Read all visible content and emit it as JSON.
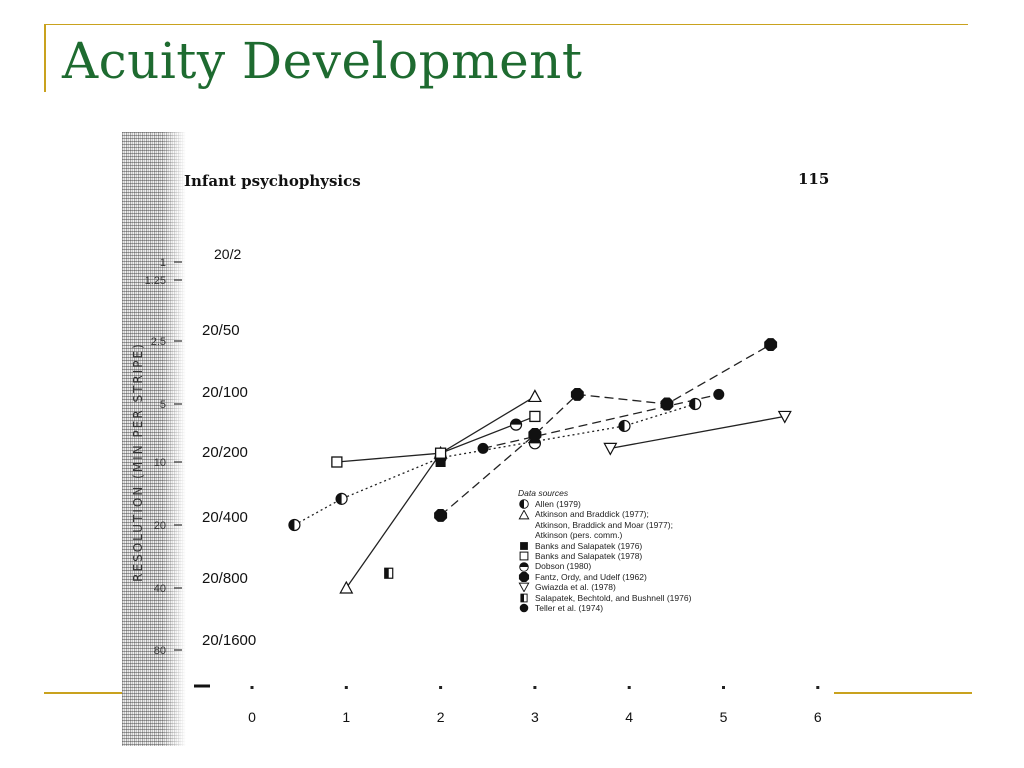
{
  "slide": {
    "title": "Acuity Development"
  },
  "figure": {
    "header_left": "Infant psychophysics",
    "header_right": "115",
    "vertical_label": "RESOLUTION (MIN PER STRIPE)"
  },
  "legend": {
    "title": "Data sources",
    "items": [
      {
        "label": "Allen (1979)",
        "symbol": "half-circle"
      },
      {
        "label": "Atkinson and Braddick (1977);",
        "symbol": "triangle-up"
      },
      {
        "label": "Atkinson, Braddick and Moar (1977);",
        "symbol": "none"
      },
      {
        "label": "Atkinson (pers. comm.)",
        "symbol": "none"
      },
      {
        "label": "Banks and Salapatek (1976)",
        "symbol": "square-filled"
      },
      {
        "label": "Banks and Salapatek (1978)",
        "symbol": "square-open"
      },
      {
        "label": "Dobson (1980)",
        "symbol": "circle-half-horizontal"
      },
      {
        "label": "Fantz, Ordy, and Udelf (1962)",
        "symbol": "octagon-filled"
      },
      {
        "label": "Gwiazda et al. (1978)",
        "symbol": "triangle-down"
      },
      {
        "label": "Salapatek, Bechtold, and Bushnell (1976)",
        "symbol": "half-square"
      },
      {
        "label": "Teller et al. (1974)",
        "symbol": "circle-filled"
      }
    ]
  },
  "chart_data": {
    "type": "scatter",
    "x_ticks": [
      "0",
      "1",
      "2",
      "3",
      "4",
      "5",
      "6"
    ],
    "y_ticks": [
      "1",
      "1.25",
      "2.5",
      "5",
      "10",
      "20",
      "40",
      "80"
    ],
    "snellen_ticks": [
      "20/2",
      "20/50",
      "20/100",
      "20/200",
      "20/400",
      "20/800",
      "20/1600"
    ],
    "xlim": [
      0,
      6
    ],
    "ylim": [
      1,
      80
    ],
    "y_scale": "log",
    "legend_position": "bottom-right",
    "series": [
      {
        "name": "Allen (1979)",
        "marker": "half-circle",
        "line": "dotted",
        "points": [
          [
            0.45,
            20
          ],
          [
            0.95,
            15
          ],
          [
            2.0,
            9.5
          ],
          [
            3.95,
            6.5
          ],
          [
            4.7,
            5
          ]
        ]
      },
      {
        "name": "Atkinson and Braddick (1977);",
        "marker": "triangle-up",
        "line": "solid",
        "points": [
          [
            1.0,
            40
          ],
          [
            2.0,
            9
          ],
          [
            3.0,
            4.6
          ]
        ]
      },
      {
        "name": "Banks and Salapatek (1976)",
        "marker": "square-filled",
        "line": "none",
        "points": [
          [
            2.0,
            10
          ]
        ]
      },
      {
        "name": "Banks and Salapatek (1978)",
        "marker": "square-open",
        "line": "solid",
        "points": [
          [
            0.9,
            10
          ],
          [
            2.0,
            9
          ],
          [
            3.0,
            5.8
          ]
        ]
      },
      {
        "name": "Dobson (1980)",
        "marker": "circle-half-horizontal",
        "line": "none",
        "points": [
          [
            2.8,
            6.4
          ],
          [
            3.0,
            8
          ]
        ]
      },
      {
        "name": "Fantz, Ordy, and Udelf (1962)",
        "marker": "octagon-filled",
        "line": "dashed",
        "points": [
          [
            2.0,
            18
          ],
          [
            3.0,
            7.2
          ],
          [
            3.45,
            4.5
          ],
          [
            4.4,
            5
          ],
          [
            5.5,
            2.6
          ]
        ]
      },
      {
        "name": "Gwiazda et al. (1978)",
        "marker": "triangle-down",
        "line": "solid",
        "points": [
          [
            3.8,
            8.5
          ],
          [
            5.65,
            5.8
          ]
        ]
      },
      {
        "name": "Salapatek, Bechtold, and Bushnell (1976)",
        "marker": "half-square",
        "line": "none",
        "points": [
          [
            1.45,
            34
          ]
        ]
      },
      {
        "name": "Teller et al. (1974)",
        "marker": "circle-filled",
        "line": "dashed",
        "points": [
          [
            2.45,
            8.5
          ],
          [
            4.95,
            4.5
          ]
        ]
      }
    ]
  }
}
